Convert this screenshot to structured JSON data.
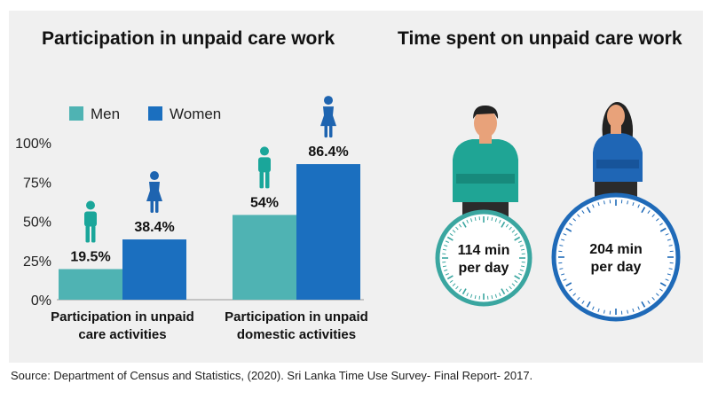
{
  "titles": {
    "left": "Participation in unpaid care work",
    "right": "Time spent on unpaid care work"
  },
  "source": "Source: Department of Census and Statistics, (2020). Sri Lanka Time Use Survey- Final Report- 2017.",
  "colors": {
    "men": "#4fb3b3",
    "women": "#1b6fbf",
    "men_figure": "#1aa69a",
    "women_figure": "#1e64b0",
    "panel": "#f0f0f0"
  },
  "chart_data": {
    "type": "bar",
    "categories": [
      [
        "Participation in unpaid",
        "care activities"
      ],
      [
        "Participation in unpaid",
        "domestic activities"
      ]
    ],
    "series": [
      {
        "name": "Men",
        "values": [
          19.5,
          54
        ],
        "labels": [
          "19.5%",
          "54%"
        ]
      },
      {
        "name": "Women",
        "values": [
          38.4,
          86.4
        ],
        "labels": [
          "38.4%",
          "86.4%"
        ]
      }
    ],
    "yticks": [
      "0%",
      "25%",
      "50%",
      "75%",
      "100%"
    ],
    "ylim": [
      0,
      100
    ],
    "legend": "top-left",
    "grid": false
  },
  "time_spent": [
    {
      "group": "Men",
      "line1": "114 min",
      "line2": "per day",
      "minutes": 114,
      "color": "#3aa6a0"
    },
    {
      "group": "Women",
      "line1": "204 min",
      "line2": "per day",
      "minutes": 204,
      "color": "#1f6ab8"
    }
  ]
}
